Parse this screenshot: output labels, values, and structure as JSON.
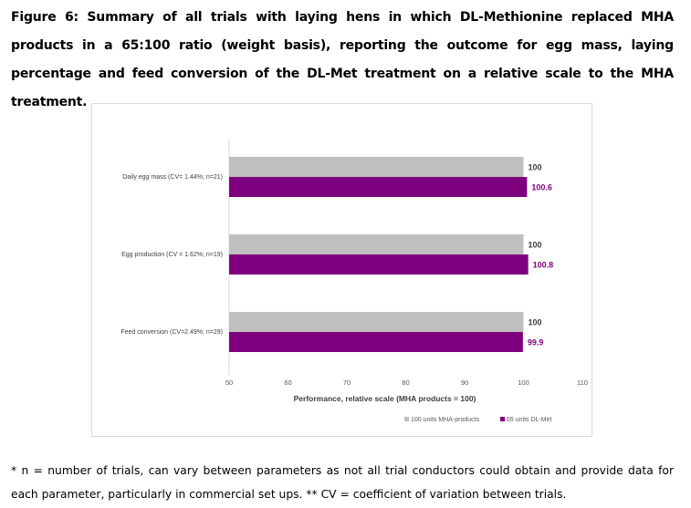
{
  "figure": {
    "title": "Figure 6: Summary of all trials with laying hens in which DL-Methionine replaced MHA products in a 65:100 ratio (weight basis), reporting the outcome for egg mass, laying percentage and feed conversion of the DL-Met treatment on a relative scale to the MHA treatment.",
    "footnote": "* n = number of trials, can vary between parameters as not all trial conductors could obtain and provide data for each parameter, particularly in commercial set ups. ** CV = coefficient of variation between trials."
  },
  "chart_data": {
    "type": "bar",
    "orientation": "horizontal",
    "categories": [
      "Daily egg mass (CV= 1.44%; n=21)",
      "Egg production (CV = 1.62%; n=19)",
      "Feed conversion (CV=2.49%; n=29)"
    ],
    "series": [
      {
        "name": "100 units MHA-products",
        "values": [
          100,
          100,
          100
        ],
        "color": "#bfbfbf",
        "labels": [
          "100",
          "100",
          "100"
        ],
        "label_color": "#404040"
      },
      {
        "name": "65 units DL-Met",
        "values": [
          100.6,
          100.8,
          99.9
        ],
        "color": "#7f007f",
        "labels": [
          "100.6",
          "100.8",
          "99.9"
        ],
        "label_color": "#7f007f"
      }
    ],
    "xlabel": "Performance, relative scale (MHA products = 100)",
    "ylabel": "",
    "xlim": [
      50,
      110
    ],
    "xticks": [
      "50",
      "60",
      "70",
      "80",
      "90",
      "100",
      "110"
    ],
    "grid": false,
    "legend_position": "bottom-right"
  }
}
